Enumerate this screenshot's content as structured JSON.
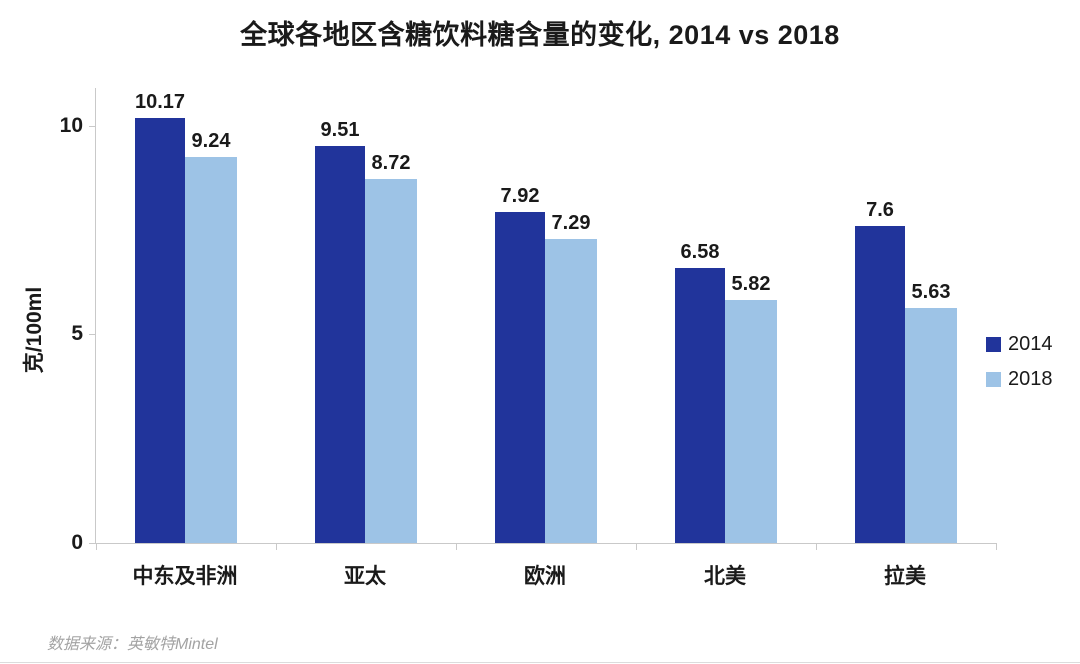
{
  "title": "全球各地区含糖饮料糖含量的变化, 2014 vs 2018",
  "source": "数据来源：英敏特Mintel",
  "colors": {
    "series_2014": "#21349B",
    "series_2018": "#9DC3E6",
    "axis": "#C9C9C9",
    "text": "#1A1A1A",
    "source_text": "#A3A3A3"
  },
  "chart_data": {
    "type": "bar",
    "title": "全球各地区含糖饮料糖含量的变化, 2014 vs 2018",
    "categories": [
      "中东及非洲",
      "亚太",
      "欧洲",
      "北美",
      "拉美"
    ],
    "series": [
      {
        "name": "2014",
        "color": "#21349B",
        "values": [
          10.17,
          9.51,
          7.92,
          6.58,
          7.6
        ]
      },
      {
        "name": "2018",
        "color": "#9DC3E6",
        "values": [
          9.24,
          8.72,
          7.29,
          5.82,
          5.63
        ]
      }
    ],
    "xlabel": "",
    "ylabel": "克/100ml",
    "yticks": [
      0,
      5,
      10
    ],
    "ylim": [
      0,
      10.9
    ],
    "grid": false,
    "legend_position": "right"
  }
}
